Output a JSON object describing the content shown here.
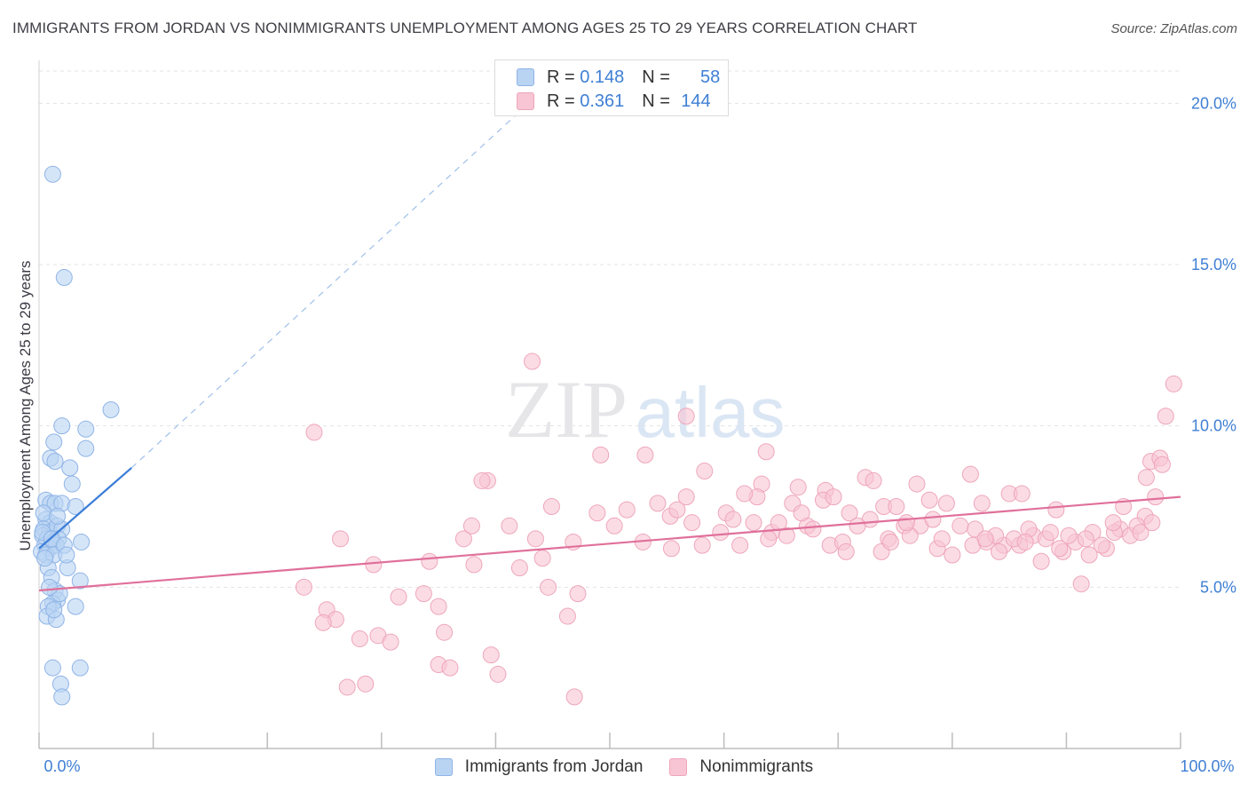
{
  "title": "IMMIGRANTS FROM JORDAN VS NONIMMIGRANTS UNEMPLOYMENT AMONG AGES 25 TO 29 YEARS CORRELATION CHART",
  "source": "Source: ZipAtlas.com",
  "watermark": {
    "zip": "ZIP",
    "atlas": "atlas"
  },
  "legend": {
    "rows": [
      {
        "r_label": "R =",
        "r_value": "0.148",
        "n_label": "N =",
        "n_value": "58"
      },
      {
        "r_label": "R =",
        "r_value": "0.361",
        "n_label": "N =",
        "n_value": "144"
      }
    ]
  },
  "colors": {
    "blue_fill": "#b9d3f3",
    "blue_stroke": "#8fb4e6",
    "blue_line": "#3b7dd8",
    "pink_fill": "#f8c5d4",
    "pink_stroke": "#eea6bb",
    "pink_line": "#e0709a",
    "tick_label": "#3f7fd4",
    "grid": "#e3e3e3"
  },
  "chart_data": {
    "type": "scatter",
    "title": "IMMIGRANTS FROM JORDAN VS NONIMMIGRANTS UNEMPLOYMENT AMONG AGES 25 TO 29 YEARS CORRELATION CHART",
    "xlabel": "",
    "ylabel": "Unemployment Among Ages 25 to 29 years",
    "xlim": [
      0,
      100
    ],
    "ylim": [
      0,
      21
    ],
    "x_tick_labels": [
      {
        "value": 0,
        "label": "0.0%"
      },
      {
        "value": 100,
        "label": "100.0%"
      }
    ],
    "y_tick_labels": [
      {
        "value": 5,
        "label": "5.0%"
      },
      {
        "value": 10,
        "label": "10.0%"
      },
      {
        "value": 15,
        "label": "15.0%"
      },
      {
        "value": 20,
        "label": "20.0%"
      }
    ],
    "x_minor_ticks": [
      0,
      10,
      20,
      30,
      40,
      50,
      60,
      70,
      80,
      90,
      100
    ],
    "grid": true,
    "series": [
      {
        "name": "Immigrants from Jordan",
        "color": "blue",
        "R": 0.148,
        "N": 58,
        "trend": {
          "x0": 0,
          "y0": 6.2,
          "x1": 8.1,
          "y1": 8.7,
          "dash_x1": 42.9,
          "dash_y1": 20.0
        },
        "points": [
          [
            1.2,
            17.8
          ],
          [
            2.2,
            14.6
          ],
          [
            6.3,
            10.5
          ],
          [
            2.0,
            10.0
          ],
          [
            4.1,
            9.9
          ],
          [
            1.3,
            9.5
          ],
          [
            1.0,
            9.0
          ],
          [
            4.1,
            9.3
          ],
          [
            1.4,
            8.9
          ],
          [
            2.7,
            8.7
          ],
          [
            2.9,
            8.2
          ],
          [
            0.6,
            7.7
          ],
          [
            1.0,
            7.6
          ],
          [
            1.4,
            7.6
          ],
          [
            2.0,
            7.6
          ],
          [
            3.2,
            7.5
          ],
          [
            0.6,
            7.1
          ],
          [
            1.0,
            7.0
          ],
          [
            0.4,
            6.8
          ],
          [
            0.9,
            6.7
          ],
          [
            1.6,
            6.9
          ],
          [
            2.0,
            6.8
          ],
          [
            0.3,
            6.6
          ],
          [
            0.7,
            6.5
          ],
          [
            1.2,
            6.4
          ],
          [
            1.7,
            6.5
          ],
          [
            0.5,
            6.3
          ],
          [
            0.9,
            6.2
          ],
          [
            1.5,
            6.3
          ],
          [
            3.7,
            6.4
          ],
          [
            0.2,
            6.1
          ],
          [
            0.6,
            6.0
          ],
          [
            1.3,
            6.0
          ],
          [
            0.8,
            5.6
          ],
          [
            2.5,
            5.6
          ],
          [
            1.1,
            5.3
          ],
          [
            3.6,
            5.2
          ],
          [
            1.4,
            4.9
          ],
          [
            1.6,
            4.6
          ],
          [
            1.2,
            4.5
          ],
          [
            0.8,
            4.4
          ],
          [
            3.2,
            4.4
          ],
          [
            0.7,
            4.1
          ],
          [
            1.5,
            4.0
          ],
          [
            1.2,
            2.5
          ],
          [
            3.6,
            2.5
          ],
          [
            1.9,
            2.0
          ],
          [
            2.0,
            1.6
          ],
          [
            0.3,
            6.7
          ],
          [
            0.5,
            5.9
          ],
          [
            1.1,
            6.5
          ],
          [
            2.2,
            6.3
          ],
          [
            1.8,
            4.8
          ],
          [
            0.4,
            7.3
          ],
          [
            1.6,
            7.2
          ],
          [
            2.4,
            6.0
          ],
          [
            0.9,
            5.0
          ],
          [
            1.3,
            4.3
          ]
        ]
      },
      {
        "name": "Nonimmigrants",
        "color": "pink",
        "R": 0.361,
        "N": 144,
        "trend": {
          "x0": 0,
          "y0": 4.9,
          "x1": 100,
          "y1": 7.8
        },
        "points": [
          [
            43.2,
            12.0
          ],
          [
            56.7,
            10.3
          ],
          [
            99.4,
            11.3
          ],
          [
            98.7,
            10.3
          ],
          [
            24.1,
            9.8
          ],
          [
            49.2,
            9.1
          ],
          [
            53.1,
            9.1
          ],
          [
            63.7,
            9.2
          ],
          [
            97.4,
            8.9
          ],
          [
            98.2,
            9.0
          ],
          [
            39.3,
            8.3
          ],
          [
            38.8,
            8.3
          ],
          [
            58.3,
            8.6
          ],
          [
            63.3,
            8.2
          ],
          [
            66.5,
            8.1
          ],
          [
            68.9,
            8.0
          ],
          [
            72.4,
            8.4
          ],
          [
            73.1,
            8.3
          ],
          [
            76.9,
            8.2
          ],
          [
            81.6,
            8.5
          ],
          [
            85.0,
            7.9
          ],
          [
            86.1,
            7.9
          ],
          [
            97.0,
            8.4
          ],
          [
            98.4,
            8.8
          ],
          [
            44.9,
            7.5
          ],
          [
            48.9,
            7.3
          ],
          [
            51.5,
            7.4
          ],
          [
            54.2,
            7.6
          ],
          [
            56.7,
            7.8
          ],
          [
            60.2,
            7.3
          ],
          [
            62.9,
            7.8
          ],
          [
            66.0,
            7.6
          ],
          [
            68.7,
            7.7
          ],
          [
            71.0,
            7.3
          ],
          [
            74.0,
            7.5
          ],
          [
            75.1,
            7.5
          ],
          [
            78.0,
            7.7
          ],
          [
            79.5,
            7.6
          ],
          [
            82.6,
            7.6
          ],
          [
            89.1,
            7.4
          ],
          [
            95.0,
            7.5
          ],
          [
            97.8,
            7.8
          ],
          [
            96.9,
            7.2
          ],
          [
            26.4,
            6.5
          ],
          [
            37.2,
            6.5
          ],
          [
            37.9,
            6.9
          ],
          [
            41.2,
            6.9
          ],
          [
            43.5,
            6.5
          ],
          [
            46.8,
            6.4
          ],
          [
            50.4,
            6.9
          ],
          [
            52.9,
            6.4
          ],
          [
            55.4,
            6.2
          ],
          [
            59.7,
            6.7
          ],
          [
            62.6,
            7.0
          ],
          [
            64.2,
            6.7
          ],
          [
            65.5,
            6.6
          ],
          [
            67.3,
            6.9
          ],
          [
            69.3,
            6.3
          ],
          [
            70.4,
            6.4
          ],
          [
            72.8,
            7.1
          ],
          [
            74.4,
            6.5
          ],
          [
            75.8,
            6.9
          ],
          [
            77.2,
            6.9
          ],
          [
            78.7,
            6.2
          ],
          [
            80.0,
            6.0
          ],
          [
            81.8,
            6.3
          ],
          [
            83.0,
            6.4
          ],
          [
            84.5,
            6.3
          ],
          [
            85.9,
            6.3
          ],
          [
            87.1,
            6.6
          ],
          [
            88.2,
            6.5
          ],
          [
            89.7,
            6.1
          ],
          [
            90.8,
            6.4
          ],
          [
            92.3,
            6.7
          ],
          [
            93.5,
            6.2
          ],
          [
            94.7,
            6.8
          ],
          [
            95.6,
            6.6
          ],
          [
            96.2,
            6.9
          ],
          [
            29.3,
            5.7
          ],
          [
            34.2,
            5.8
          ],
          [
            38.1,
            5.7
          ],
          [
            42.1,
            5.6
          ],
          [
            44.1,
            5.9
          ],
          [
            23.2,
            5.0
          ],
          [
            31.5,
            4.7
          ],
          [
            33.7,
            4.8
          ],
          [
            35.0,
            4.4
          ],
          [
            44.6,
            5.0
          ],
          [
            47.2,
            4.8
          ],
          [
            25.2,
            4.3
          ],
          [
            26.0,
            4.0
          ],
          [
            24.9,
            3.9
          ],
          [
            28.1,
            3.4
          ],
          [
            29.7,
            3.5
          ],
          [
            30.8,
            3.3
          ],
          [
            35.5,
            3.6
          ],
          [
            39.6,
            2.9
          ],
          [
            46.3,
            4.1
          ],
          [
            35.0,
            2.6
          ],
          [
            36.0,
            2.5
          ],
          [
            40.2,
            2.3
          ],
          [
            27.0,
            1.9
          ],
          [
            28.6,
            2.0
          ],
          [
            46.9,
            1.6
          ],
          [
            55.3,
            7.2
          ],
          [
            58.1,
            6.3
          ],
          [
            61.4,
            6.3
          ],
          [
            63.9,
            6.5
          ],
          [
            67.8,
            6.8
          ],
          [
            71.7,
            6.9
          ],
          [
            73.8,
            6.1
          ],
          [
            76.3,
            6.6
          ],
          [
            79.1,
            6.5
          ],
          [
            82.0,
            6.8
          ],
          [
            83.8,
            6.6
          ],
          [
            85.4,
            6.5
          ],
          [
            86.7,
            6.8
          ],
          [
            88.6,
            6.7
          ],
          [
            90.2,
            6.6
          ],
          [
            91.7,
            6.5
          ],
          [
            93.1,
            6.3
          ],
          [
            94.2,
            6.7
          ],
          [
            96.5,
            6.7
          ],
          [
            57.2,
            7.0
          ],
          [
            60.8,
            7.1
          ],
          [
            64.8,
            7.0
          ],
          [
            69.6,
            7.8
          ],
          [
            76.0,
            7.0
          ],
          [
            80.7,
            6.9
          ],
          [
            84.1,
            6.1
          ],
          [
            87.8,
            5.8
          ],
          [
            92.0,
            6.0
          ],
          [
            94.1,
            7.0
          ],
          [
            97.5,
            7.0
          ],
          [
            91.3,
            5.1
          ],
          [
            55.9,
            7.4
          ],
          [
            61.8,
            7.9
          ],
          [
            66.8,
            7.3
          ],
          [
            70.7,
            6.1
          ],
          [
            74.6,
            6.4
          ],
          [
            78.3,
            7.1
          ],
          [
            82.9,
            6.5
          ],
          [
            86.4,
            6.4
          ],
          [
            89.4,
            6.2
          ]
        ]
      }
    ]
  },
  "bottom_legend": [
    {
      "label": "Immigrants from Jordan",
      "color": "blue"
    },
    {
      "label": "Nonimmigrants",
      "color": "pink"
    }
  ]
}
